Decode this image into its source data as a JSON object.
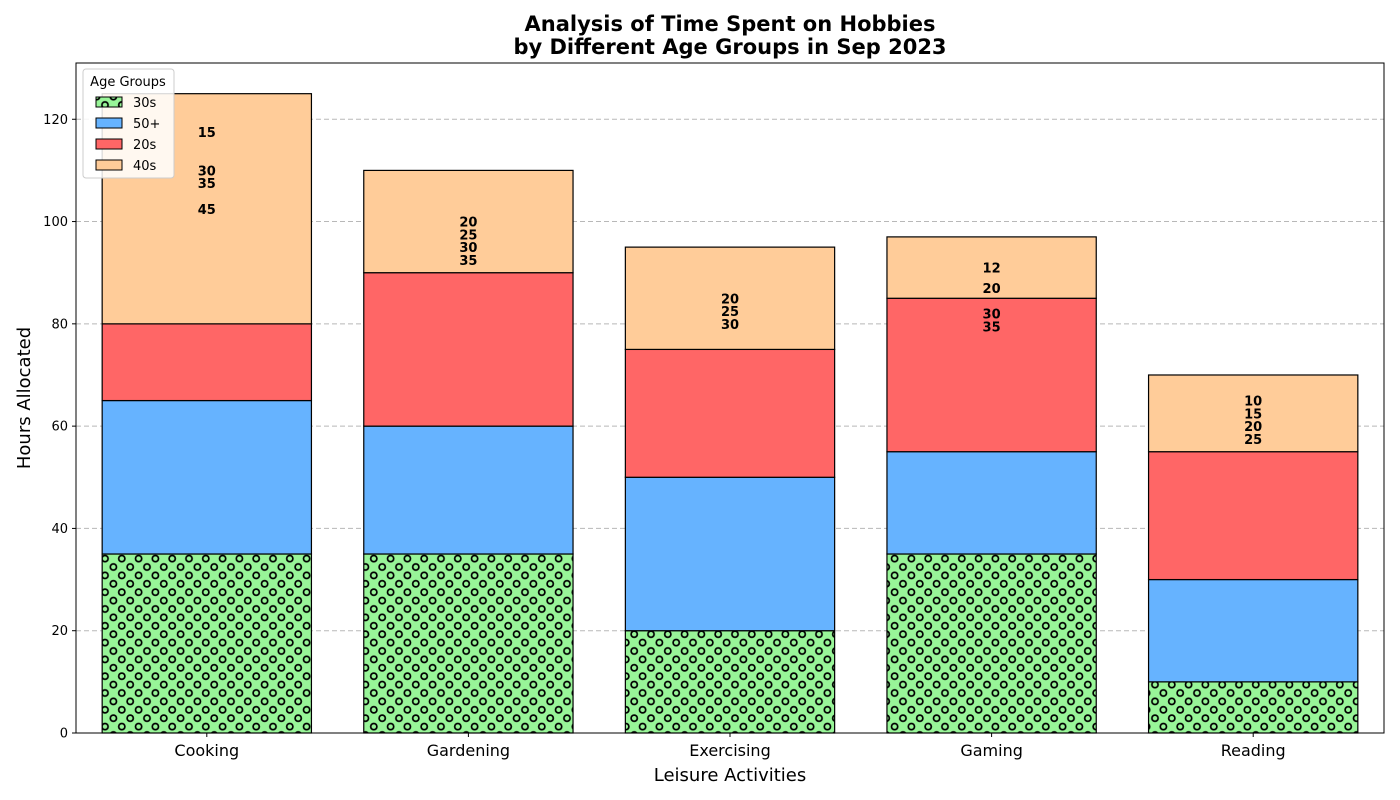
{
  "chart_data": {
    "type": "bar",
    "stacked": true,
    "title": [
      "Analysis of Time Spent on Hobbies",
      "by Different Age Groups in Sep 2023"
    ],
    "xlabel": "Leisure Activities",
    "ylabel": "Hours Allocated",
    "categories": [
      "Cooking",
      "Gardening",
      "Exercising",
      "Gaming",
      "Reading"
    ],
    "ylim": [
      0,
      131
    ],
    "yticks": [
      0,
      20,
      40,
      60,
      80,
      100,
      120
    ],
    "grid": true,
    "legend": {
      "title": "Age Groups",
      "position": "top-left",
      "order": [
        "30s",
        "50+",
        "20s",
        "40s"
      ]
    },
    "series": [
      {
        "name": "30s",
        "values": [
          35,
          35,
          20,
          35,
          10
        ],
        "color": "#98f598",
        "pattern": "circles"
      },
      {
        "name": "50+",
        "values": [
          30,
          25,
          30,
          20,
          20
        ],
        "color": "#66b3ff"
      },
      {
        "name": "20s",
        "values": [
          15,
          30,
          25,
          30,
          25
        ],
        "color": "#ff6666"
      },
      {
        "name": "40s",
        "values": [
          45,
          20,
          20,
          12,
          15
        ],
        "color": "#ffcc99"
      }
    ],
    "annotations": [
      {
        "category": "Cooking",
        "labels": [
          {
            "text": "15",
            "y": 117.5
          },
          {
            "text": "30",
            "y": 110
          },
          {
            "text": "35",
            "y": 107.5
          },
          {
            "text": "45",
            "y": 102.5
          }
        ]
      },
      {
        "category": "Gardening",
        "labels": [
          {
            "text": "20",
            "y": 100
          },
          {
            "text": "25",
            "y": 97.5
          },
          {
            "text": "30",
            "y": 95
          },
          {
            "text": "35",
            "y": 92.5
          }
        ]
      },
      {
        "category": "Exercising",
        "labels": [
          {
            "text": "20",
            "y": 85
          },
          {
            "text": "25",
            "y": 82.5
          },
          {
            "text": "30",
            "y": 80
          }
        ]
      },
      {
        "category": "Gaming",
        "labels": [
          {
            "text": "12",
            "y": 91
          },
          {
            "text": "20",
            "y": 87
          },
          {
            "text": "30",
            "y": 82
          },
          {
            "text": "35",
            "y": 79.5
          }
        ]
      },
      {
        "category": "Reading",
        "labels": [
          {
            "text": "10",
            "y": 65
          },
          {
            "text": "15",
            "y": 62.5
          },
          {
            "text": "20",
            "y": 60
          },
          {
            "text": "25",
            "y": 57.5
          }
        ]
      }
    ]
  }
}
